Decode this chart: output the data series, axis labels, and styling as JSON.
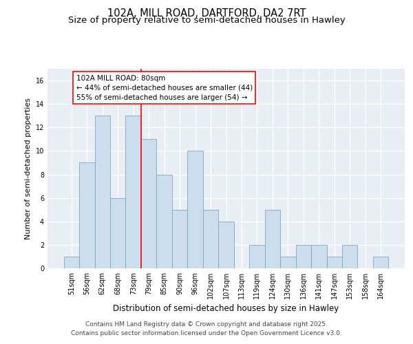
{
  "title": "102A, MILL ROAD, DARTFORD, DA2 7RT",
  "subtitle": "Size of property relative to semi-detached houses in Hawley",
  "xlabel": "Distribution of semi-detached houses by size in Hawley",
  "ylabel": "Number of semi-detached properties",
  "categories": [
    "51sqm",
    "56sqm",
    "62sqm",
    "68sqm",
    "73sqm",
    "79sqm",
    "85sqm",
    "90sqm",
    "96sqm",
    "102sqm",
    "107sqm",
    "113sqm",
    "119sqm",
    "124sqm",
    "130sqm",
    "136sqm",
    "141sqm",
    "147sqm",
    "153sqm",
    "158sqm",
    "164sqm"
  ],
  "values": [
    1,
    9,
    13,
    6,
    13,
    11,
    8,
    5,
    10,
    5,
    4,
    0,
    2,
    5,
    1,
    2,
    2,
    1,
    2,
    0,
    1
  ],
  "bar_color": "#ccdded",
  "bar_edge_color": "#7aaabb",
  "annotation_label": "102A MILL ROAD: 80sqm",
  "annotation_line1": "← 44% of semi-detached houses are smaller (44)",
  "annotation_line2": "55% of semi-detached houses are larger (54) →",
  "property_marker_index": 4.5,
  "ylim": [
    0,
    17
  ],
  "yticks": [
    0,
    2,
    4,
    6,
    8,
    10,
    12,
    14,
    16
  ],
  "footer_line1": "Contains HM Land Registry data © Crown copyright and database right 2025.",
  "footer_line2": "Contains public sector information licensed under the Open Government Licence v3.0.",
  "background_color": "#e8eef4",
  "grid_color": "#ffffff",
  "title_fontsize": 10.5,
  "subtitle_fontsize": 9.5,
  "ylabel_fontsize": 8,
  "xlabel_fontsize": 8.5,
  "tick_fontsize": 7,
  "annotation_fontsize": 7.5,
  "footer_fontsize": 6.5
}
